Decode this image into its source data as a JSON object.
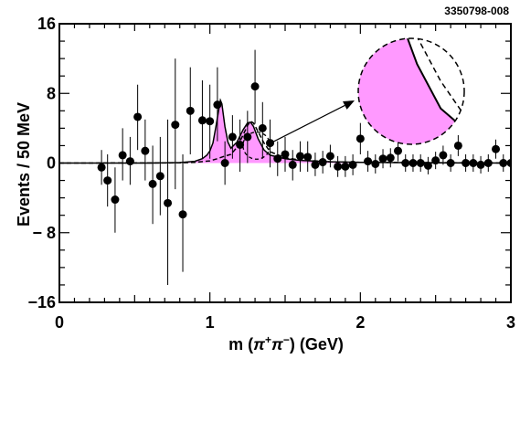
{
  "figure_id": "3350798-008",
  "colors": {
    "fill": "#ff99ff",
    "line": "#000000"
  },
  "chart_data": {
    "type": "scatter",
    "title": "",
    "xlabel": {
      "prefix": "m (",
      "pi1": "π",
      "sup1": "+",
      "pi2": "π",
      "sup2": "−",
      "suffix": ") (GeV)"
    },
    "ylabel": "Events / 50 MeV",
    "xlim": [
      0,
      3
    ],
    "ylim": [
      -16,
      16
    ],
    "x_ticks": [
      {
        "v": 0,
        "label": "0"
      },
      {
        "v": 1,
        "label": "1"
      },
      {
        "v": 2,
        "label": "2"
      },
      {
        "v": 3,
        "label": "3"
      }
    ],
    "y_ticks": [
      {
        "v": 16,
        "label": "16"
      },
      {
        "v": 8,
        "label": "8"
      },
      {
        "v": 0,
        "label": "0"
      },
      {
        "v": -8,
        "label": "− 8"
      },
      {
        "v": -16,
        "label": "−16"
      }
    ],
    "points": [
      {
        "x": 0.28,
        "y": -0.5,
        "lo": -2.5,
        "hi": 1.5
      },
      {
        "x": 0.32,
        "y": -2.0,
        "lo": -5.0,
        "hi": 1.0
      },
      {
        "x": 0.37,
        "y": -4.2,
        "lo": -8.0,
        "hi": -0.5
      },
      {
        "x": 0.42,
        "y": 0.9,
        "lo": -2.0,
        "hi": 4.0
      },
      {
        "x": 0.47,
        "y": 0.2,
        "lo": -2.5,
        "hi": 3.0
      },
      {
        "x": 0.52,
        "y": 5.3,
        "lo": 1.5,
        "hi": 9.0
      },
      {
        "x": 0.57,
        "y": 1.4,
        "lo": -2.0,
        "hi": 5.0
      },
      {
        "x": 0.62,
        "y": -2.4,
        "lo": -7.0,
        "hi": 2.0
      },
      {
        "x": 0.67,
        "y": -1.5,
        "lo": -6.0,
        "hi": 3.0
      },
      {
        "x": 0.72,
        "y": -4.6,
        "lo": -14.0,
        "hi": 5.0
      },
      {
        "x": 0.77,
        "y": 4.4,
        "lo": -3.0,
        "hi": 12.0
      },
      {
        "x": 0.82,
        "y": -5.9,
        "lo": -12.5,
        "hi": 1.0
      },
      {
        "x": 0.87,
        "y": 6.0,
        "lo": 1.0,
        "hi": 11.0
      },
      {
        "x": 0.95,
        "y": 4.9,
        "lo": 0.5,
        "hi": 9.5
      },
      {
        "x": 1.0,
        "y": 4.8,
        "lo": 0.5,
        "hi": 9.0
      },
      {
        "x": 1.05,
        "y": 6.7,
        "lo": 2.5,
        "hi": 11.0
      },
      {
        "x": 1.1,
        "y": 0.0,
        "lo": -2.5,
        "hi": 2.5
      },
      {
        "x": 1.15,
        "y": 3.0,
        "lo": 0.5,
        "hi": 5.5
      },
      {
        "x": 1.2,
        "y": 2.1,
        "lo": -1.0,
        "hi": 5.0
      },
      {
        "x": 1.25,
        "y": 3.0,
        "lo": 0.0,
        "hi": 6.0
      },
      {
        "x": 1.3,
        "y": 8.8,
        "lo": 4.5,
        "hi": 13.0
      },
      {
        "x": 1.35,
        "y": 4.0,
        "lo": 0.5,
        "hi": 7.0
      },
      {
        "x": 1.4,
        "y": 2.3,
        "lo": -0.5,
        "hi": 5.0
      },
      {
        "x": 1.45,
        "y": 0.5,
        "lo": -1.5,
        "hi": 2.5
      },
      {
        "x": 1.5,
        "y": 1.0,
        "lo": -1.0,
        "hi": 3.0
      },
      {
        "x": 1.55,
        "y": -0.2,
        "lo": -2.0,
        "hi": 1.5
      },
      {
        "x": 1.6,
        "y": 0.8,
        "lo": -1.0,
        "hi": 2.5
      },
      {
        "x": 1.65,
        "y": 0.7,
        "lo": -1.0,
        "hi": 2.5
      },
      {
        "x": 1.7,
        "y": -0.2,
        "lo": -1.5,
        "hi": 1.2
      },
      {
        "x": 1.75,
        "y": 0.1,
        "lo": -1.2,
        "hi": 1.4
      },
      {
        "x": 1.8,
        "y": 0.8,
        "lo": -0.5,
        "hi": 2.1
      },
      {
        "x": 1.85,
        "y": -0.4,
        "lo": -1.6,
        "hi": 0.8
      },
      {
        "x": 1.9,
        "y": -0.4,
        "lo": -1.6,
        "hi": 0.8
      },
      {
        "x": 1.95,
        "y": -0.2,
        "lo": -1.4,
        "hi": 1.0
      },
      {
        "x": 2.0,
        "y": 2.8,
        "lo": 1.0,
        "hi": 4.6
      },
      {
        "x": 2.05,
        "y": 0.2,
        "lo": -1.0,
        "hi": 1.4
      },
      {
        "x": 2.1,
        "y": -0.1,
        "lo": -1.2,
        "hi": 1.0
      },
      {
        "x": 2.15,
        "y": 0.5,
        "lo": -0.6,
        "hi": 1.6
      },
      {
        "x": 2.2,
        "y": 0.6,
        "lo": -0.5,
        "hi": 1.7
      },
      {
        "x": 2.25,
        "y": 1.4,
        "lo": 0.2,
        "hi": 2.6
      },
      {
        "x": 2.3,
        "y": 0.0,
        "lo": -1.0,
        "hi": 1.0
      },
      {
        "x": 2.35,
        "y": 0.0,
        "lo": -1.0,
        "hi": 1.0
      },
      {
        "x": 2.4,
        "y": 0.0,
        "lo": -1.0,
        "hi": 1.0
      },
      {
        "x": 2.45,
        "y": -0.3,
        "lo": -1.3,
        "hi": 0.7
      },
      {
        "x": 2.5,
        "y": 0.3,
        "lo": -0.7,
        "hi": 1.3
      },
      {
        "x": 2.55,
        "y": 0.9,
        "lo": -0.2,
        "hi": 2.0
      },
      {
        "x": 2.6,
        "y": 0.0,
        "lo": -1.0,
        "hi": 1.0
      },
      {
        "x": 2.65,
        "y": 2.0,
        "lo": 0.8,
        "hi": 3.2
      },
      {
        "x": 2.7,
        "y": 0.0,
        "lo": -1.0,
        "hi": 1.0
      },
      {
        "x": 2.75,
        "y": 0.0,
        "lo": -1.0,
        "hi": 1.0
      },
      {
        "x": 2.8,
        "y": -0.2,
        "lo": -1.2,
        "hi": 0.8
      },
      {
        "x": 2.85,
        "y": 0.0,
        "lo": -1.0,
        "hi": 1.0
      },
      {
        "x": 2.9,
        "y": 1.6,
        "lo": 0.5,
        "hi": 2.7
      },
      {
        "x": 2.95,
        "y": 0.0,
        "lo": -1.0,
        "hi": 1.0
      },
      {
        "x": 3.0,
        "y": 0.0,
        "lo": -1.0,
        "hi": 1.0
      }
    ],
    "fit_curve": [
      [
        0.0,
        0.0
      ],
      [
        0.6,
        0.0
      ],
      [
        0.8,
        0.05
      ],
      [
        0.9,
        0.2
      ],
      [
        0.95,
        0.5
      ],
      [
        0.98,
        0.9
      ],
      [
        1.0,
        1.4
      ],
      [
        1.02,
        2.3
      ],
      [
        1.04,
        4.2
      ],
      [
        1.06,
        6.2
      ],
      [
        1.07,
        7.2
      ],
      [
        1.08,
        6.8
      ],
      [
        1.1,
        4.2
      ],
      [
        1.12,
        2.4
      ],
      [
        1.14,
        1.7
      ],
      [
        1.18,
        2.4
      ],
      [
        1.22,
        3.8
      ],
      [
        1.25,
        4.6
      ],
      [
        1.27,
        4.7
      ],
      [
        1.29,
        4.2
      ],
      [
        1.32,
        2.8
      ],
      [
        1.36,
        1.5
      ],
      [
        1.4,
        0.9
      ],
      [
        1.5,
        0.5
      ],
      [
        1.6,
        0.3
      ],
      [
        1.8,
        0.15
      ],
      [
        2.0,
        0.08
      ],
      [
        2.5,
        0.03
      ],
      [
        3.0,
        0.0
      ]
    ],
    "fit_dashed": [
      [
        0.0,
        0.0
      ],
      [
        0.8,
        0.02
      ],
      [
        0.9,
        0.08
      ],
      [
        1.0,
        0.25
      ],
      [
        1.05,
        0.5
      ],
      [
        1.1,
        0.8
      ],
      [
        1.14,
        1.0
      ],
      [
        1.18,
        1.8
      ],
      [
        1.22,
        3.2
      ],
      [
        1.25,
        4.3
      ],
      [
        1.27,
        4.8
      ],
      [
        1.29,
        4.6
      ],
      [
        1.32,
        3.6
      ],
      [
        1.36,
        2.3
      ],
      [
        1.4,
        1.3
      ],
      [
        1.5,
        0.6
      ],
      [
        1.6,
        0.35
      ],
      [
        1.8,
        0.15
      ],
      [
        2.0,
        0.08
      ],
      [
        3.0,
        0.0
      ]
    ],
    "zoom": {
      "center": [
        1.31,
        2.0
      ],
      "data_radius_x": 0.09
    }
  }
}
